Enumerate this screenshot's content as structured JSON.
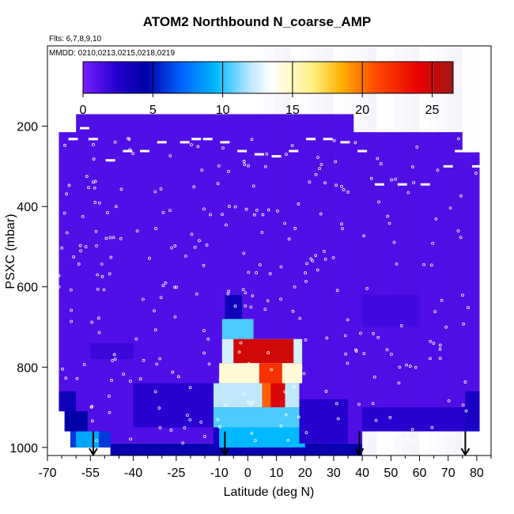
{
  "chart_data": {
    "type": "heatmap",
    "title": "ATOM2 Northbound N_coarse_AMP",
    "notes": {
      "flights": "Flts: 6,7,8,9,10",
      "dates": "MMDD: 0210,0213,0215,0218,0219"
    },
    "xlabel": "Latitude (deg N)",
    "ylabel": "PSXC (mbar)",
    "xlim": [
      -70,
      85
    ],
    "ylim": [
      1020,
      0
    ],
    "x_tick_labels": [
      "-70",
      "-55",
      "-40",
      "-25",
      "-10",
      "0",
      "10",
      "20",
      "30",
      "40",
      "50",
      "60",
      "70",
      "80"
    ],
    "x_ticks_major": [
      -70,
      -55,
      -40,
      -25,
      -10,
      0,
      10,
      20,
      30,
      40,
      50,
      60,
      70,
      80
    ],
    "x_ticks_minor": [
      -65,
      -60,
      -50,
      -45,
      -35,
      -30,
      -20,
      -15,
      -5,
      5,
      15,
      25,
      35,
      45,
      55,
      65,
      75,
      85
    ],
    "y_ticks": [
      200,
      400,
      600,
      800,
      1000
    ],
    "colorbar": {
      "range": [
        0,
        26.5
      ],
      "ticks": [
        0,
        5,
        10,
        15,
        20,
        25
      ],
      "stops": [
        [
          0,
          "#7a1dff"
        ],
        [
          2.5,
          "#2200cc"
        ],
        [
          4.5,
          "#0000a8"
        ],
        [
          7,
          "#0060ff"
        ],
        [
          9.5,
          "#00b8ff"
        ],
        [
          12,
          "#bfe8ff"
        ],
        [
          13.5,
          "#ffffff"
        ],
        [
          16.5,
          "#ffef80"
        ],
        [
          18.5,
          "#ffb000"
        ],
        [
          21,
          "#ff4a00"
        ],
        [
          24,
          "#e80000"
        ],
        [
          26.5,
          "#a01818"
        ]
      ]
    },
    "background_value": 1.2,
    "data_extent": {
      "columns_lat": [
        -66,
        81
      ],
      "top_pressure_by_lat": [
        [
          -66,
          215
        ],
        [
          -60,
          170
        ],
        [
          -26,
          170
        ],
        [
          15,
          170
        ],
        [
          37,
          170
        ],
        [
          37,
          215
        ],
        [
          75,
          215
        ],
        [
          75,
          265
        ],
        [
          81,
          265
        ]
      ],
      "bottom_pressure_by_lat": [
        [
          -66,
          860
        ],
        [
          -64,
          910
        ],
        [
          -62,
          960
        ],
        [
          -48,
          990
        ],
        [
          40,
          990
        ],
        [
          76,
          960
        ],
        [
          81,
          960
        ]
      ]
    },
    "cells": [
      {
        "lat": [
          -66,
          -60
        ],
        "p": [
          860,
          910
        ],
        "v": 3.5
      },
      {
        "lat": [
          -64,
          -56
        ],
        "p": [
          910,
          960
        ],
        "v": 4.5
      },
      {
        "lat": [
          -62,
          -48
        ],
        "p": [
          960,
          1000
        ],
        "v": 6
      },
      {
        "lat": [
          -60,
          -52
        ],
        "p": [
          960,
          1000
        ],
        "v": 9
      },
      {
        "lat": [
          -48,
          40
        ],
        "p": [
          990,
          1020
        ],
        "v": 4.0
      },
      {
        "lat": [
          -12,
          -4
        ],
        "p": [
          880,
          1000
        ],
        "v": 3.0
      },
      {
        "lat": [
          -8,
          -2
        ],
        "p": [
          620,
          680
        ],
        "v": 3.5
      },
      {
        "lat": [
          -9,
          2
        ],
        "p": [
          680,
          730
        ],
        "v": 10.5
      },
      {
        "lat": [
          -9,
          19
        ],
        "p": [
          730,
          790
        ],
        "v": 12.5
      },
      {
        "lat": [
          -5,
          16
        ],
        "p": [
          730,
          790
        ],
        "v": 24.8
      },
      {
        "lat": [
          -10,
          19
        ],
        "p": [
          790,
          840
        ],
        "v": 14.5
      },
      {
        "lat": [
          4,
          12
        ],
        "p": [
          790,
          840
        ],
        "v": 22
      },
      {
        "lat": [
          -12,
          18
        ],
        "p": [
          840,
          900
        ],
        "v": 12
      },
      {
        "lat": [
          5,
          13
        ],
        "p": [
          840,
          900
        ],
        "v": 20.5
      },
      {
        "lat": [
          8,
          13
        ],
        "p": [
          840,
          900
        ],
        "v": 24.5
      },
      {
        "lat": [
          -12,
          18
        ],
        "p": [
          900,
          950
        ],
        "v": 10.5
      },
      {
        "lat": [
          -10,
          20
        ],
        "p": [
          950,
          1000
        ],
        "v": 9.5
      },
      {
        "lat": [
          -40,
          -12
        ],
        "p": [
          840,
          950
        ],
        "v": 2.3
      },
      {
        "lat": [
          18,
          35
        ],
        "p": [
          880,
          990
        ],
        "v": 2.4
      },
      {
        "lat": [
          40,
          76
        ],
        "p": [
          900,
          960
        ],
        "v": 2.3
      },
      {
        "lat": [
          76,
          81
        ],
        "p": [
          860,
          960
        ],
        "v": 3.0
      },
      {
        "lat": [
          -55,
          -40
        ],
        "p": [
          740,
          780
        ],
        "v": 1.8
      },
      {
        "lat": [
          40,
          60
        ],
        "p": [
          620,
          700
        ],
        "v": 1.6
      }
    ],
    "arrows_lat": [
      -54,
      -8,
      39,
      76
    ],
    "sample_path": [
      [
        -61,
        232
      ],
      [
        -57,
        205
      ],
      [
        -54,
        232
      ],
      [
        -48,
        285
      ],
      [
        -42,
        262
      ],
      [
        -36,
        262
      ],
      [
        -30,
        240
      ],
      [
        -22,
        240
      ],
      [
        -18,
        232
      ],
      [
        -14,
        232
      ],
      [
        -8,
        240
      ],
      [
        -2,
        262
      ],
      [
        4,
        270
      ],
      [
        10,
        275
      ],
      [
        16,
        262
      ],
      [
        22,
        232
      ],
      [
        28,
        232
      ],
      [
        34,
        240
      ],
      [
        40,
        262
      ],
      [
        46,
        345
      ],
      [
        54,
        345
      ],
      [
        62,
        345
      ],
      [
        70,
        300
      ],
      [
        74,
        262
      ],
      [
        80,
        300
      ]
    ]
  }
}
